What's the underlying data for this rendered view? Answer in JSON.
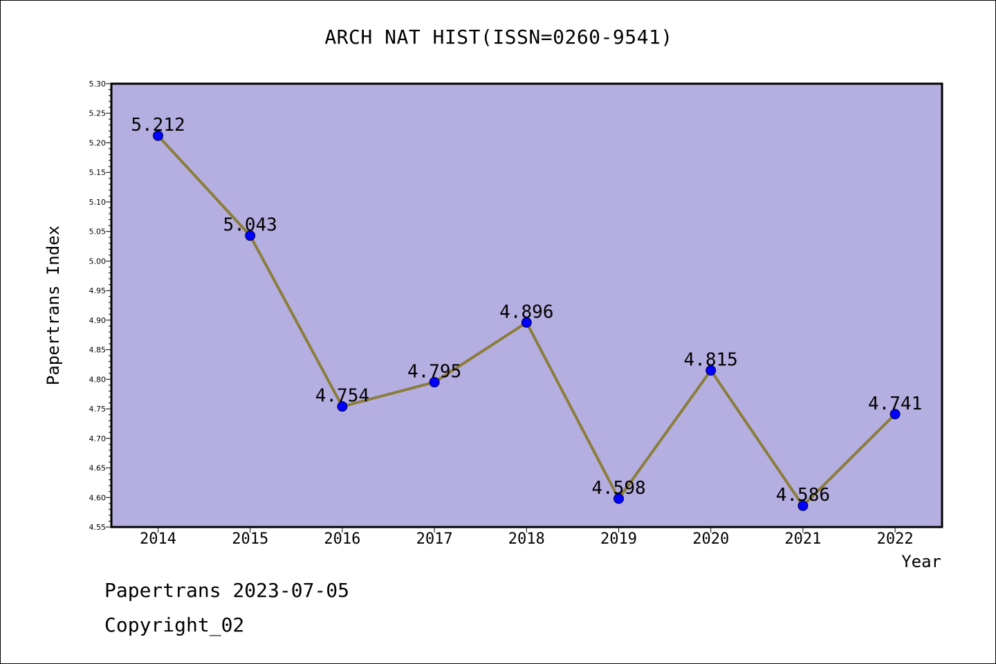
{
  "title": "ARCH NAT HIST(ISSN=0260-9541)",
  "footer": {
    "line1": "Papertrans 2023-07-05",
    "line2": "Copyright_02"
  },
  "chart_data": {
    "type": "line",
    "title": "ARCH NAT HIST(ISSN=0260-9541)",
    "xlabel": "Year",
    "ylabel": "Papertrans Index",
    "categories": [
      "2014",
      "2015",
      "2016",
      "2017",
      "2018",
      "2019",
      "2020",
      "2021",
      "2022"
    ],
    "values": [
      5.212,
      5.043,
      4.754,
      4.795,
      4.896,
      4.598,
      4.815,
      4.586,
      4.741
    ],
    "data_labels": [
      "5.212",
      "5.043",
      "4.754",
      "4.795",
      "4.896",
      "4.598",
      "4.815",
      "4.586",
      "4.741"
    ],
    "ylim": [
      4.55,
      5.3
    ],
    "yticks": [
      "4.55",
      "4.60",
      "4.65",
      "4.70",
      "4.75",
      "4.80",
      "4.85",
      "4.90",
      "4.95",
      "5.00",
      "5.05",
      "5.10",
      "5.15",
      "5.20",
      "5.25",
      "5.30"
    ],
    "grid": false,
    "colors": {
      "plot_background": "#b5aee0",
      "line": "#8b7d3a",
      "marker": "#0000ff"
    }
  }
}
